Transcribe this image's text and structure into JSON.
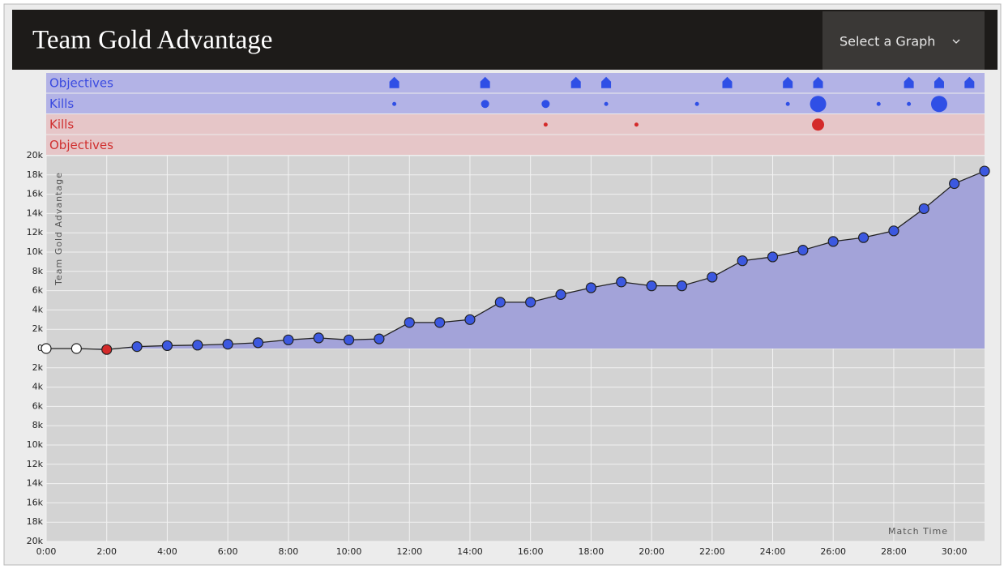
{
  "header": {
    "title": "Team Gold Advantage",
    "select": "Select a Graph"
  },
  "chart_data": {
    "type": "line",
    "y_label": "Team Gold Advantage",
    "x_label": "Match Time",
    "x": [
      0,
      1,
      2,
      3,
      4,
      5,
      6,
      7,
      8,
      9,
      10,
      11,
      12,
      13,
      14,
      15,
      16,
      17,
      18,
      19,
      20,
      21,
      22,
      23,
      24,
      25,
      26,
      27,
      28,
      29,
      30,
      31
    ],
    "series": [
      {
        "name": "Team Gold Advantage",
        "color": "#222222",
        "fill": "#a3a3d9",
        "values": [
          0,
          0,
          -100,
          200,
          300,
          350,
          450,
          600,
          900,
          1100,
          900,
          1000,
          2700,
          2700,
          3000,
          4800,
          4800,
          5600,
          6300,
          6900,
          6500,
          6500,
          7400,
          9100,
          9500,
          10200,
          11100,
          11500,
          12200,
          14500,
          17100,
          18400
        ],
        "marker_colors": [
          "#ffffff",
          "#ffffff",
          "#d42a2a",
          "#3c58e0",
          "#3c58e0",
          "#3c58e0",
          "#3c58e0",
          "#3c58e0",
          "#3c58e0",
          "#3c58e0",
          "#3c58e0",
          "#3c58e0",
          "#3c58e0",
          "#3c58e0",
          "#3c58e0",
          "#3c58e0",
          "#3c58e0",
          "#3c58e0",
          "#3c58e0",
          "#3c58e0",
          "#3c58e0",
          "#3c58e0",
          "#3c58e0",
          "#3c58e0",
          "#3c58e0",
          "#3c58e0",
          "#3c58e0",
          "#3c58e0",
          "#3c58e0",
          "#3c58e0",
          "#3c58e0",
          "#3c58e0"
        ]
      }
    ],
    "rows": [
      {
        "name": "Objectives",
        "kind": "objective",
        "color": "#2f4fe6",
        "text_color": "#3a4ae0",
        "background": "#b3b3e6",
        "x": [
          11.5,
          14.5,
          17.5,
          18.5,
          22.5,
          24.5,
          25.5,
          28.5,
          29.5,
          30.5
        ]
      },
      {
        "name": "Kills",
        "kind": "kill",
        "color": "#2f4fe6",
        "text_color": "#3a4ae0",
        "background": "#b3b3e6",
        "x": [
          11.5,
          14.5,
          16.5,
          18.5,
          21.5,
          24.5,
          25.5,
          27.5,
          28.5,
          29.5
        ],
        "sizes": [
          1,
          2,
          2,
          1,
          1,
          1,
          4,
          1,
          1,
          4
        ]
      },
      {
        "name": "Kills",
        "kind": "kill",
        "color": "#d42a2a",
        "text_color": "#d03030",
        "background": "#e6c6c8",
        "x": [
          16.5,
          19.5,
          25.5
        ],
        "sizes": [
          1,
          1,
          3
        ]
      },
      {
        "name": "Objectives",
        "kind": "objective",
        "color": "#d42a2a",
        "text_color": "#d03030",
        "background": "#e6c6c8",
        "x": []
      }
    ],
    "xlim": [
      0,
      31
    ],
    "ylim": [
      -20000,
      20000
    ],
    "xticks": [
      {
        "value": 0,
        "label": "0:00"
      },
      {
        "value": 2,
        "label": "2:00"
      },
      {
        "value": 4,
        "label": "4:00"
      },
      {
        "value": 6,
        "label": "6:00"
      },
      {
        "value": 8,
        "label": "8:00"
      },
      {
        "value": 10,
        "label": "10:00"
      },
      {
        "value": 12,
        "label": "12:00"
      },
      {
        "value": 14,
        "label": "14:00"
      },
      {
        "value": 16,
        "label": "16:00"
      },
      {
        "value": 18,
        "label": "18:00"
      },
      {
        "value": 20,
        "label": "20:00"
      },
      {
        "value": 22,
        "label": "22:00"
      },
      {
        "value": 24,
        "label": "24:00"
      },
      {
        "value": 26,
        "label": "26:00"
      },
      {
        "value": 28,
        "label": "28:00"
      },
      {
        "value": 30,
        "label": "30:00"
      }
    ],
    "yticks": [
      {
        "value": 20000,
        "label": "20k"
      },
      {
        "value": 18000,
        "label": "18k"
      },
      {
        "value": 16000,
        "label": "16k"
      },
      {
        "value": 14000,
        "label": "14k"
      },
      {
        "value": 12000,
        "label": "12k"
      },
      {
        "value": 10000,
        "label": "10k"
      },
      {
        "value": 8000,
        "label": "8k"
      },
      {
        "value": 6000,
        "label": "6k"
      },
      {
        "value": 4000,
        "label": "4k"
      },
      {
        "value": 2000,
        "label": "2k"
      },
      0,
      {
        "value": -2000,
        "label": "2k"
      },
      {
        "value": -4000,
        "label": "4k"
      },
      {
        "value": -6000,
        "label": "6k"
      },
      {
        "value": -8000,
        "label": "8k"
      },
      {
        "value": -10000,
        "label": "10k"
      },
      {
        "value": -12000,
        "label": "12k"
      },
      {
        "value": -14000,
        "label": "14k"
      },
      {
        "value": -16000,
        "label": "16k"
      },
      {
        "value": -18000,
        "label": "18k"
      },
      {
        "value": -20000,
        "label": "20k"
      }
    ],
    "grid": true
  }
}
